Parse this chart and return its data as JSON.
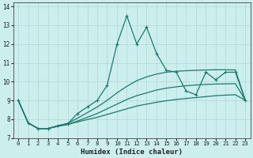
{
  "xlabel": "Humidex (Indice chaleur)",
  "xlim": [
    -0.5,
    23.5
  ],
  "ylim": [
    7,
    14.2
  ],
  "yticks": [
    7,
    8,
    9,
    10,
    11,
    12,
    13,
    14
  ],
  "xticks": [
    0,
    1,
    2,
    3,
    4,
    5,
    6,
    7,
    8,
    9,
    10,
    11,
    12,
    13,
    14,
    15,
    16,
    17,
    18,
    19,
    20,
    21,
    22,
    23
  ],
  "bg_color": "#cceeed",
  "line_color": "#1a7a6e",
  "grid_color": "#b0d8d4",
  "main_line": {
    "x": [
      0,
      1,
      2,
      3,
      4,
      5,
      6,
      7,
      8,
      9,
      10,
      11,
      12,
      13,
      14,
      15,
      16,
      17,
      18,
      19,
      20,
      21,
      22,
      23
    ],
    "y": [
      9.0,
      7.8,
      7.5,
      7.5,
      7.65,
      7.75,
      8.3,
      8.65,
      9.0,
      9.8,
      12.0,
      13.5,
      12.0,
      12.9,
      11.5,
      10.6,
      10.5,
      9.5,
      9.3,
      10.5,
      10.1,
      10.5,
      10.5,
      9.0
    ]
  },
  "trend_lines": [
    [
      9.0,
      7.8,
      7.5,
      7.5,
      7.62,
      7.72,
      7.85,
      7.98,
      8.1,
      8.25,
      8.4,
      8.55,
      8.7,
      8.8,
      8.9,
      8.98,
      9.05,
      9.1,
      9.15,
      9.2,
      9.25,
      9.28,
      9.3,
      9.0
    ],
    [
      9.0,
      7.8,
      7.5,
      7.5,
      7.62,
      7.72,
      7.9,
      8.1,
      8.3,
      8.55,
      8.8,
      9.05,
      9.25,
      9.4,
      9.55,
      9.65,
      9.72,
      9.78,
      9.82,
      9.85,
      9.87,
      9.88,
      9.89,
      9.0
    ],
    [
      9.0,
      7.8,
      7.5,
      7.5,
      7.65,
      7.78,
      8.05,
      8.35,
      8.65,
      9.0,
      9.4,
      9.75,
      10.05,
      10.25,
      10.4,
      10.5,
      10.55,
      10.58,
      10.6,
      10.62,
      10.63,
      10.63,
      10.62,
      9.0
    ]
  ]
}
